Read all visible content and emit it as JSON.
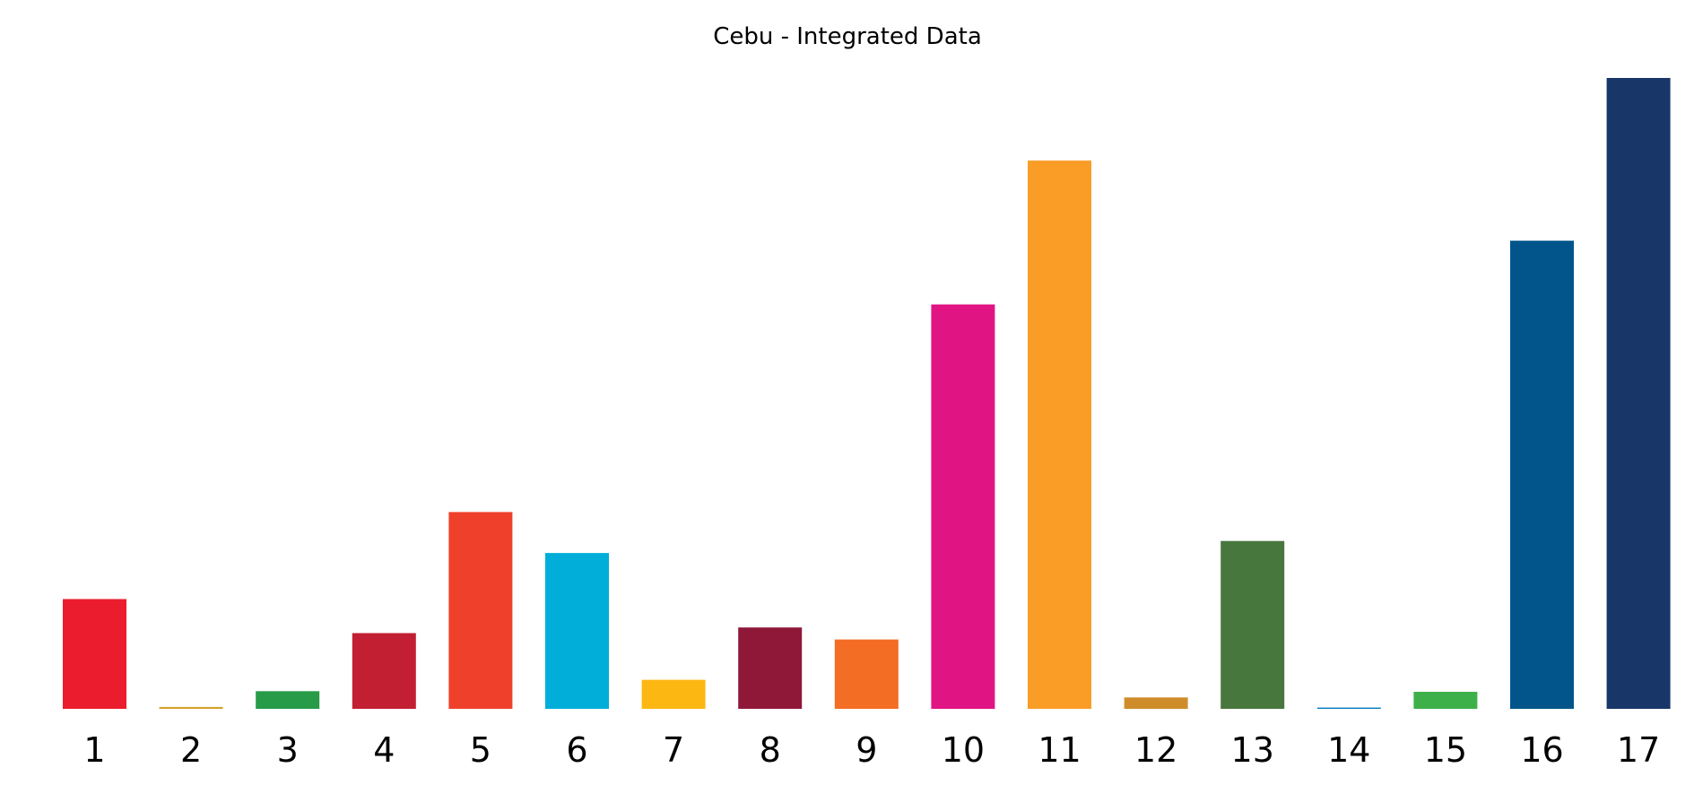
{
  "chart_data": {
    "type": "bar",
    "title": "Cebu - Integrated Data",
    "xlabel": "",
    "ylabel": "",
    "categories": [
      "1",
      "2",
      "3",
      "4",
      "5",
      "6",
      "7",
      "8",
      "9",
      "10",
      "11",
      "12",
      "13",
      "14",
      "15",
      "16",
      "17"
    ],
    "values": [
      1.74,
      0.03,
      0.28,
      1.2,
      3.12,
      2.47,
      0.46,
      1.29,
      1.1,
      6.41,
      8.69,
      0.18,
      2.66,
      0.02,
      0.27,
      7.42,
      10.0
    ],
    "colors": [
      "#EB1C2D",
      "#D3A029",
      "#279B48",
      "#C31F33",
      "#EF402B",
      "#00AED9",
      "#FDB713",
      "#8F1838",
      "#F36D25",
      "#E11484",
      "#F99D26",
      "#CF8D2A",
      "#48773E",
      "#007DBC",
      "#3EB049",
      "#02558B",
      "#183668"
    ],
    "ylim": [
      0,
      10.0
    ],
    "grid": false,
    "legend": "none"
  }
}
